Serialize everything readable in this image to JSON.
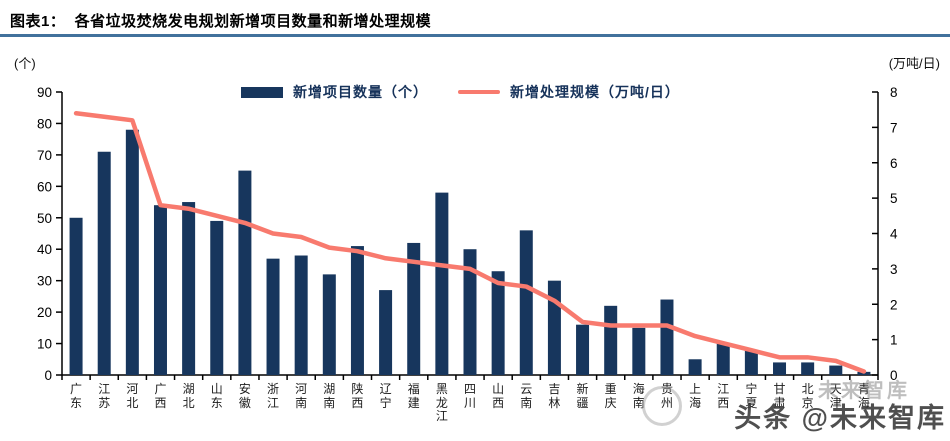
{
  "header": {
    "title": "图表1：  各省垃圾焚烧发电规划新增项目数量和新增处理规模"
  },
  "colors": {
    "bar": "#17365D",
    "line": "#F87A6E",
    "header_rule": "#41719C",
    "axis": "#000000"
  },
  "chart_data": {
    "type": "bar",
    "combo": "bar+line, dual axis",
    "title": "各省垃圾焚烧发电规划新增项目数量和新增处理规模",
    "categories": [
      "广东",
      "江苏",
      "河北",
      "广西",
      "湖北",
      "山东",
      "安徽",
      "浙江",
      "河南",
      "湖南",
      "陕西",
      "辽宁",
      "福建",
      "黑龙江",
      "四川",
      "山西",
      "云南",
      "吉林",
      "新疆",
      "重庆",
      "海南",
      "贵州",
      "上海",
      "江西",
      "宁夏",
      "甘肃",
      "北京",
      "天津",
      "青海"
    ],
    "series": [
      {
        "name": "新增项目数量（个）",
        "type": "bar",
        "axis": "left",
        "color": "#17365D",
        "values": [
          50,
          71,
          78,
          54,
          55,
          49,
          65,
          37,
          38,
          32,
          41,
          27,
          42,
          58,
          40,
          33,
          46,
          30,
          16,
          22,
          15,
          24,
          5,
          10,
          8,
          4,
          4,
          3,
          1
        ]
      },
      {
        "name": "新增处理规模（万吨/日）",
        "type": "line",
        "axis": "right",
        "color": "#F87A6E",
        "values": [
          7.4,
          7.3,
          7.2,
          4.8,
          4.7,
          4.5,
          4.3,
          4.0,
          3.9,
          3.6,
          3.5,
          3.3,
          3.2,
          3.1,
          3.0,
          2.6,
          2.5,
          2.1,
          1.5,
          1.4,
          1.4,
          1.4,
          1.1,
          0.9,
          0.7,
          0.5,
          0.5,
          0.4,
          0.1
        ]
      }
    ],
    "left_axis": {
      "unit": "(个)",
      "min": 0,
      "max": 90,
      "step": 10
    },
    "right_axis": {
      "unit": "(万吨/日)",
      "min": 0,
      "max": 8,
      "step": 1
    },
    "grid": false,
    "legend_position": "top-center"
  },
  "watermark": {
    "ghost": "未来智库",
    "main": "头条 @未来智库"
  }
}
